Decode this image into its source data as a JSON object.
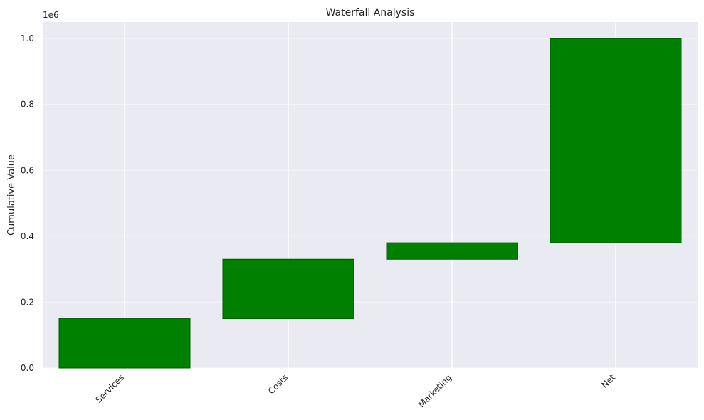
{
  "chart_data": {
    "type": "bar",
    "subtype": "waterfall",
    "title": "Waterfall Analysis",
    "xlabel": "",
    "ylabel": "Cumulative Value",
    "y_offset_label": "1e6",
    "categories": [
      "Services",
      "Costs",
      "Marketing",
      "Net"
    ],
    "bottoms": [
      0,
      150000,
      330000,
      380000
    ],
    "tops": [
      150000,
      330000,
      380000,
      1000000
    ],
    "ylim": [
      0,
      1050000
    ],
    "yticks": [
      0,
      200000,
      400000,
      600000,
      800000,
      1000000
    ],
    "ytick_labels": [
      "0.0",
      "0.2",
      "0.4",
      "0.6",
      "0.8",
      "1.0"
    ],
    "grid": true,
    "legend": "none",
    "colors": {
      "bar_fill": "#008000",
      "bar_edge": "#005a00",
      "plot_background": "#eaeaf2",
      "grid": "#ffffff"
    }
  }
}
